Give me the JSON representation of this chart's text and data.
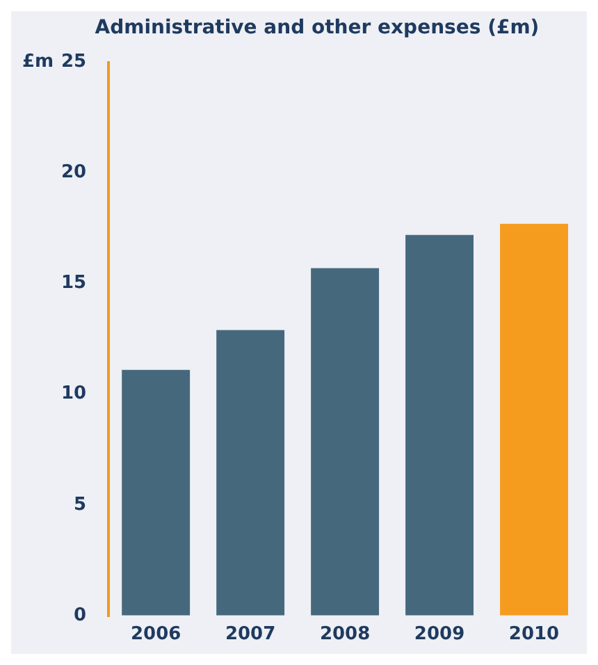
{
  "chart_data": {
    "type": "bar",
    "title": "Administrative and other expenses (£m)",
    "ylabel": "£m",
    "categories": [
      "2006",
      "2007",
      "2008",
      "2009",
      "2010"
    ],
    "values": [
      11.1,
      12.9,
      15.7,
      17.2,
      17.7
    ],
    "colors": [
      "#46687c",
      "#46687c",
      "#46687c",
      "#46687c",
      "#f59c1f"
    ],
    "ylim": [
      0,
      25
    ],
    "yticks": [
      0,
      5,
      10,
      15,
      20,
      25
    ],
    "grid": false,
    "legend": false
  }
}
